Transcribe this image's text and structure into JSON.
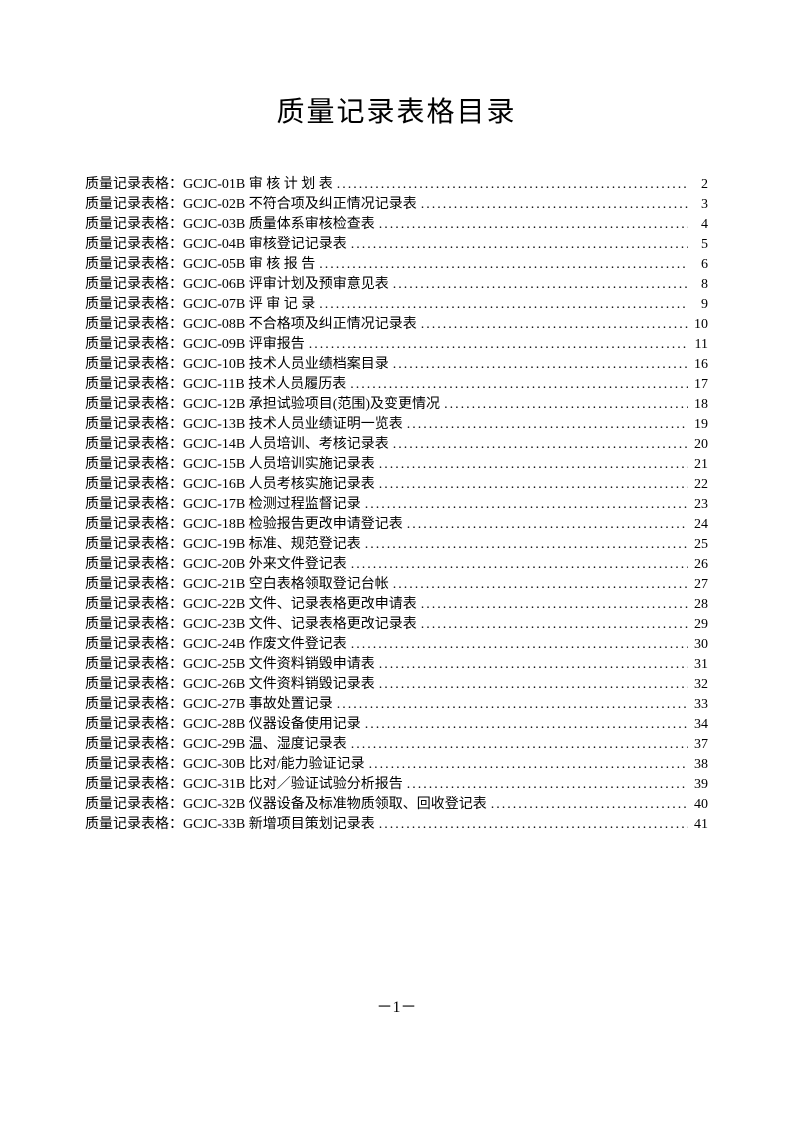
{
  "title": "质量记录表格目录",
  "prefix": "质量记录表格：",
  "entries": [
    {
      "code": "GCJC-01B",
      "name": "审 核 计 划 表",
      "page": "2"
    },
    {
      "code": "GCJC-02B",
      "name": "不符合项及纠正情况记录表",
      "page": "3"
    },
    {
      "code": "GCJC-03B",
      "name": "质量体系审核检查表",
      "page": "4"
    },
    {
      "code": "GCJC-04B",
      "name": "审核登记记录表",
      "page": "5"
    },
    {
      "code": "GCJC-05B",
      "name": "审  核  报  告",
      "page": "6"
    },
    {
      "code": "GCJC-06B",
      "name": "评审计划及预审意见表",
      "page": "8"
    },
    {
      "code": "GCJC-07B",
      "name": "评  审  记  录",
      "page": "9"
    },
    {
      "code": "GCJC-08B",
      "name": "不合格项及纠正情况记录表",
      "page": "10"
    },
    {
      "code": "GCJC-09B",
      "name": "评审报告",
      "page": "11"
    },
    {
      "code": "GCJC-10B",
      "name": "技术人员业绩档案目录",
      "page": "16"
    },
    {
      "code": "GCJC-11B",
      "name": "技术人员履历表",
      "page": "17"
    },
    {
      "code": "GCJC-12B",
      "name": "承担试验项目(范围)及变更情况",
      "page": "18"
    },
    {
      "code": "GCJC-13B",
      "name": "技术人员业绩证明一览表",
      "page": "19"
    },
    {
      "code": "GCJC-14B",
      "name": "人员培训、考核记录表",
      "page": "20"
    },
    {
      "code": "GCJC-15B",
      "name": "人员培训实施记录表",
      "page": "21"
    },
    {
      "code": "GCJC-16B",
      "name": "人员考核实施记录表",
      "page": "22"
    },
    {
      "code": "GCJC-17B",
      "name": "检测过程监督记录",
      "page": "23"
    },
    {
      "code": "GCJC-18B",
      "name": "检验报告更改申请登记表",
      "page": "24"
    },
    {
      "code": "GCJC-19B",
      "name": "标准、规范登记表",
      "page": "25"
    },
    {
      "code": "GCJC-20B",
      "name": "外来文件登记表",
      "page": "26"
    },
    {
      "code": "GCJC-21B",
      "name": "空白表格领取登记台帐",
      "page": "27"
    },
    {
      "code": "GCJC-22B",
      "name": "文件、记录表格更改申请表",
      "page": "28"
    },
    {
      "code": "GCJC-23B",
      "name": "文件、记录表格更改记录表",
      "page": "29"
    },
    {
      "code": "GCJC-24B",
      "name": "作废文件登记表",
      "page": "30"
    },
    {
      "code": "GCJC-25B",
      "name": "文件资料销毁申请表",
      "page": "31"
    },
    {
      "code": "GCJC-26B",
      "name": "文件资料销毁记录表",
      "page": "32"
    },
    {
      "code": "GCJC-27B",
      "name": "事故处置记录",
      "page": "33"
    },
    {
      "code": "GCJC-28B",
      "name": "仪器设备使用记录",
      "page": "34"
    },
    {
      "code": "GCJC-29B",
      "name": "温、湿度记录表",
      "page": "37"
    },
    {
      "code": "GCJC-30B",
      "name": "比对/能力验证记录",
      "page": "38"
    },
    {
      "code": "GCJC-31B",
      "name": "比对／验证试验分析报告",
      "page": "39"
    },
    {
      "code": "GCJC-32B",
      "name": "仪器设备及标准物质领取、回收登记表",
      "page": "40"
    },
    {
      "code": "GCJC-33B",
      "name": "新增项目策划记录表",
      "page": "41"
    }
  ],
  "page_number": "－1－",
  "colors": {
    "text": "#000000",
    "background": "#ffffff"
  },
  "typography": {
    "title_fontsize": 28,
    "entry_fontsize": 14,
    "line_height": 20
  }
}
